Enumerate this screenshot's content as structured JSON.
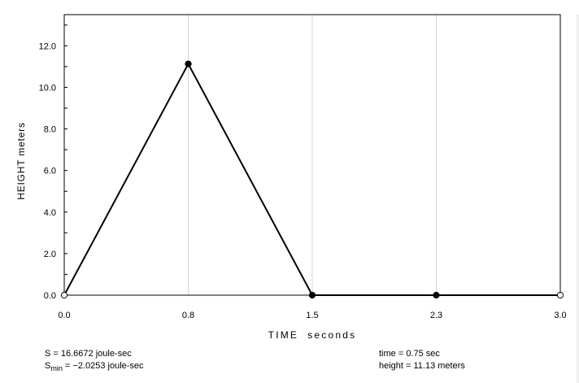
{
  "chart_data": {
    "type": "line",
    "xlabel": "TIME  seconds",
    "ylabel": "HEIGHT meters",
    "xlim": [
      0.0,
      3.0
    ],
    "ylim": [
      0.0,
      13.5
    ],
    "x_ticks": [
      {
        "value": 0.0,
        "label": "0.0"
      },
      {
        "value": 0.75,
        "label": "0.8"
      },
      {
        "value": 1.5,
        "label": "1.5"
      },
      {
        "value": 2.25,
        "label": "2.3"
      },
      {
        "value": 3.0,
        "label": "3.0"
      }
    ],
    "y_major_ticks": [
      {
        "value": 0,
        "label": "0.0"
      },
      {
        "value": 2,
        "label": "2.0"
      },
      {
        "value": 4,
        "label": "4.0"
      },
      {
        "value": 6,
        "label": "6.0"
      },
      {
        "value": 8,
        "label": "8.0"
      },
      {
        "value": 10,
        "label": "10.0"
      },
      {
        "value": 12,
        "label": "12.0"
      }
    ],
    "y_minor_step": 1,
    "vertical_grid": [
      0.75,
      1.5,
      2.25
    ],
    "series": [
      {
        "x": [
          0.0,
          0.75,
          1.5,
          2.25,
          3.0
        ],
        "y": [
          0.0,
          11.13,
          0.0,
          0.0,
          0.0
        ],
        "marker_fill": [
          "open",
          "filled",
          "filled",
          "filled",
          "open"
        ]
      }
    ],
    "colors": {
      "line": "#000000",
      "grid": "#d4d4d4",
      "frame": "#000000"
    }
  },
  "readouts": {
    "action": "S = 16.6672 joule-sec",
    "smin_prefix": "S",
    "smin_sub": "min",
    "smin_value": " = −2.0253 joule-sec",
    "time": "time = 0.75 sec",
    "height": "height = 11.13 meters"
  }
}
